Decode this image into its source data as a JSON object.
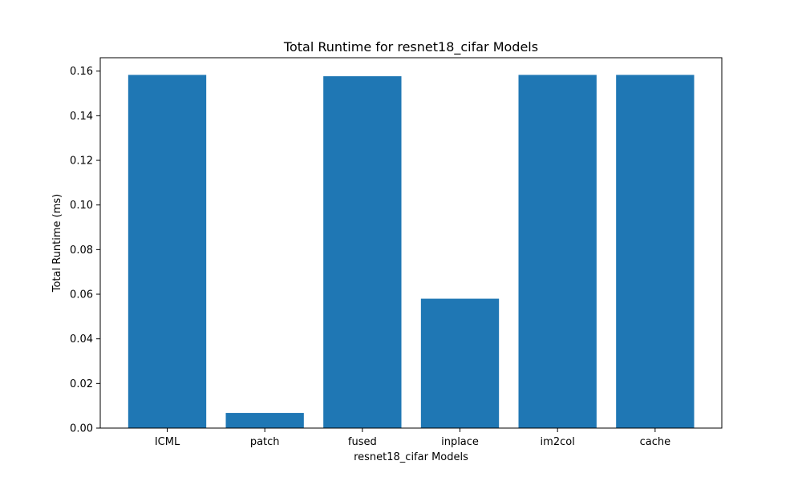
{
  "chart_data": {
    "type": "bar",
    "title": "Total Runtime for resnet18_cifar Models",
    "xlabel": "resnet18_cifar Models",
    "ylabel": "Total Runtime (ms)",
    "categories": [
      "ICML",
      "patch",
      "fused",
      "inplace",
      "im2col",
      "cache"
    ],
    "values": [
      0.1583,
      0.0068,
      0.1577,
      0.058,
      0.1583,
      0.1583
    ],
    "ylim": [
      0,
      0.166
    ],
    "yticks": [
      0.0,
      0.02,
      0.04,
      0.06,
      0.08,
      0.1,
      0.12,
      0.14,
      0.16
    ],
    "ytick_labels": [
      "0.00",
      "0.02",
      "0.04",
      "0.06",
      "0.08",
      "0.10",
      "0.12",
      "0.14",
      "0.16"
    ],
    "grid": false,
    "legend": "none",
    "bar_color": "#1f77b4"
  }
}
